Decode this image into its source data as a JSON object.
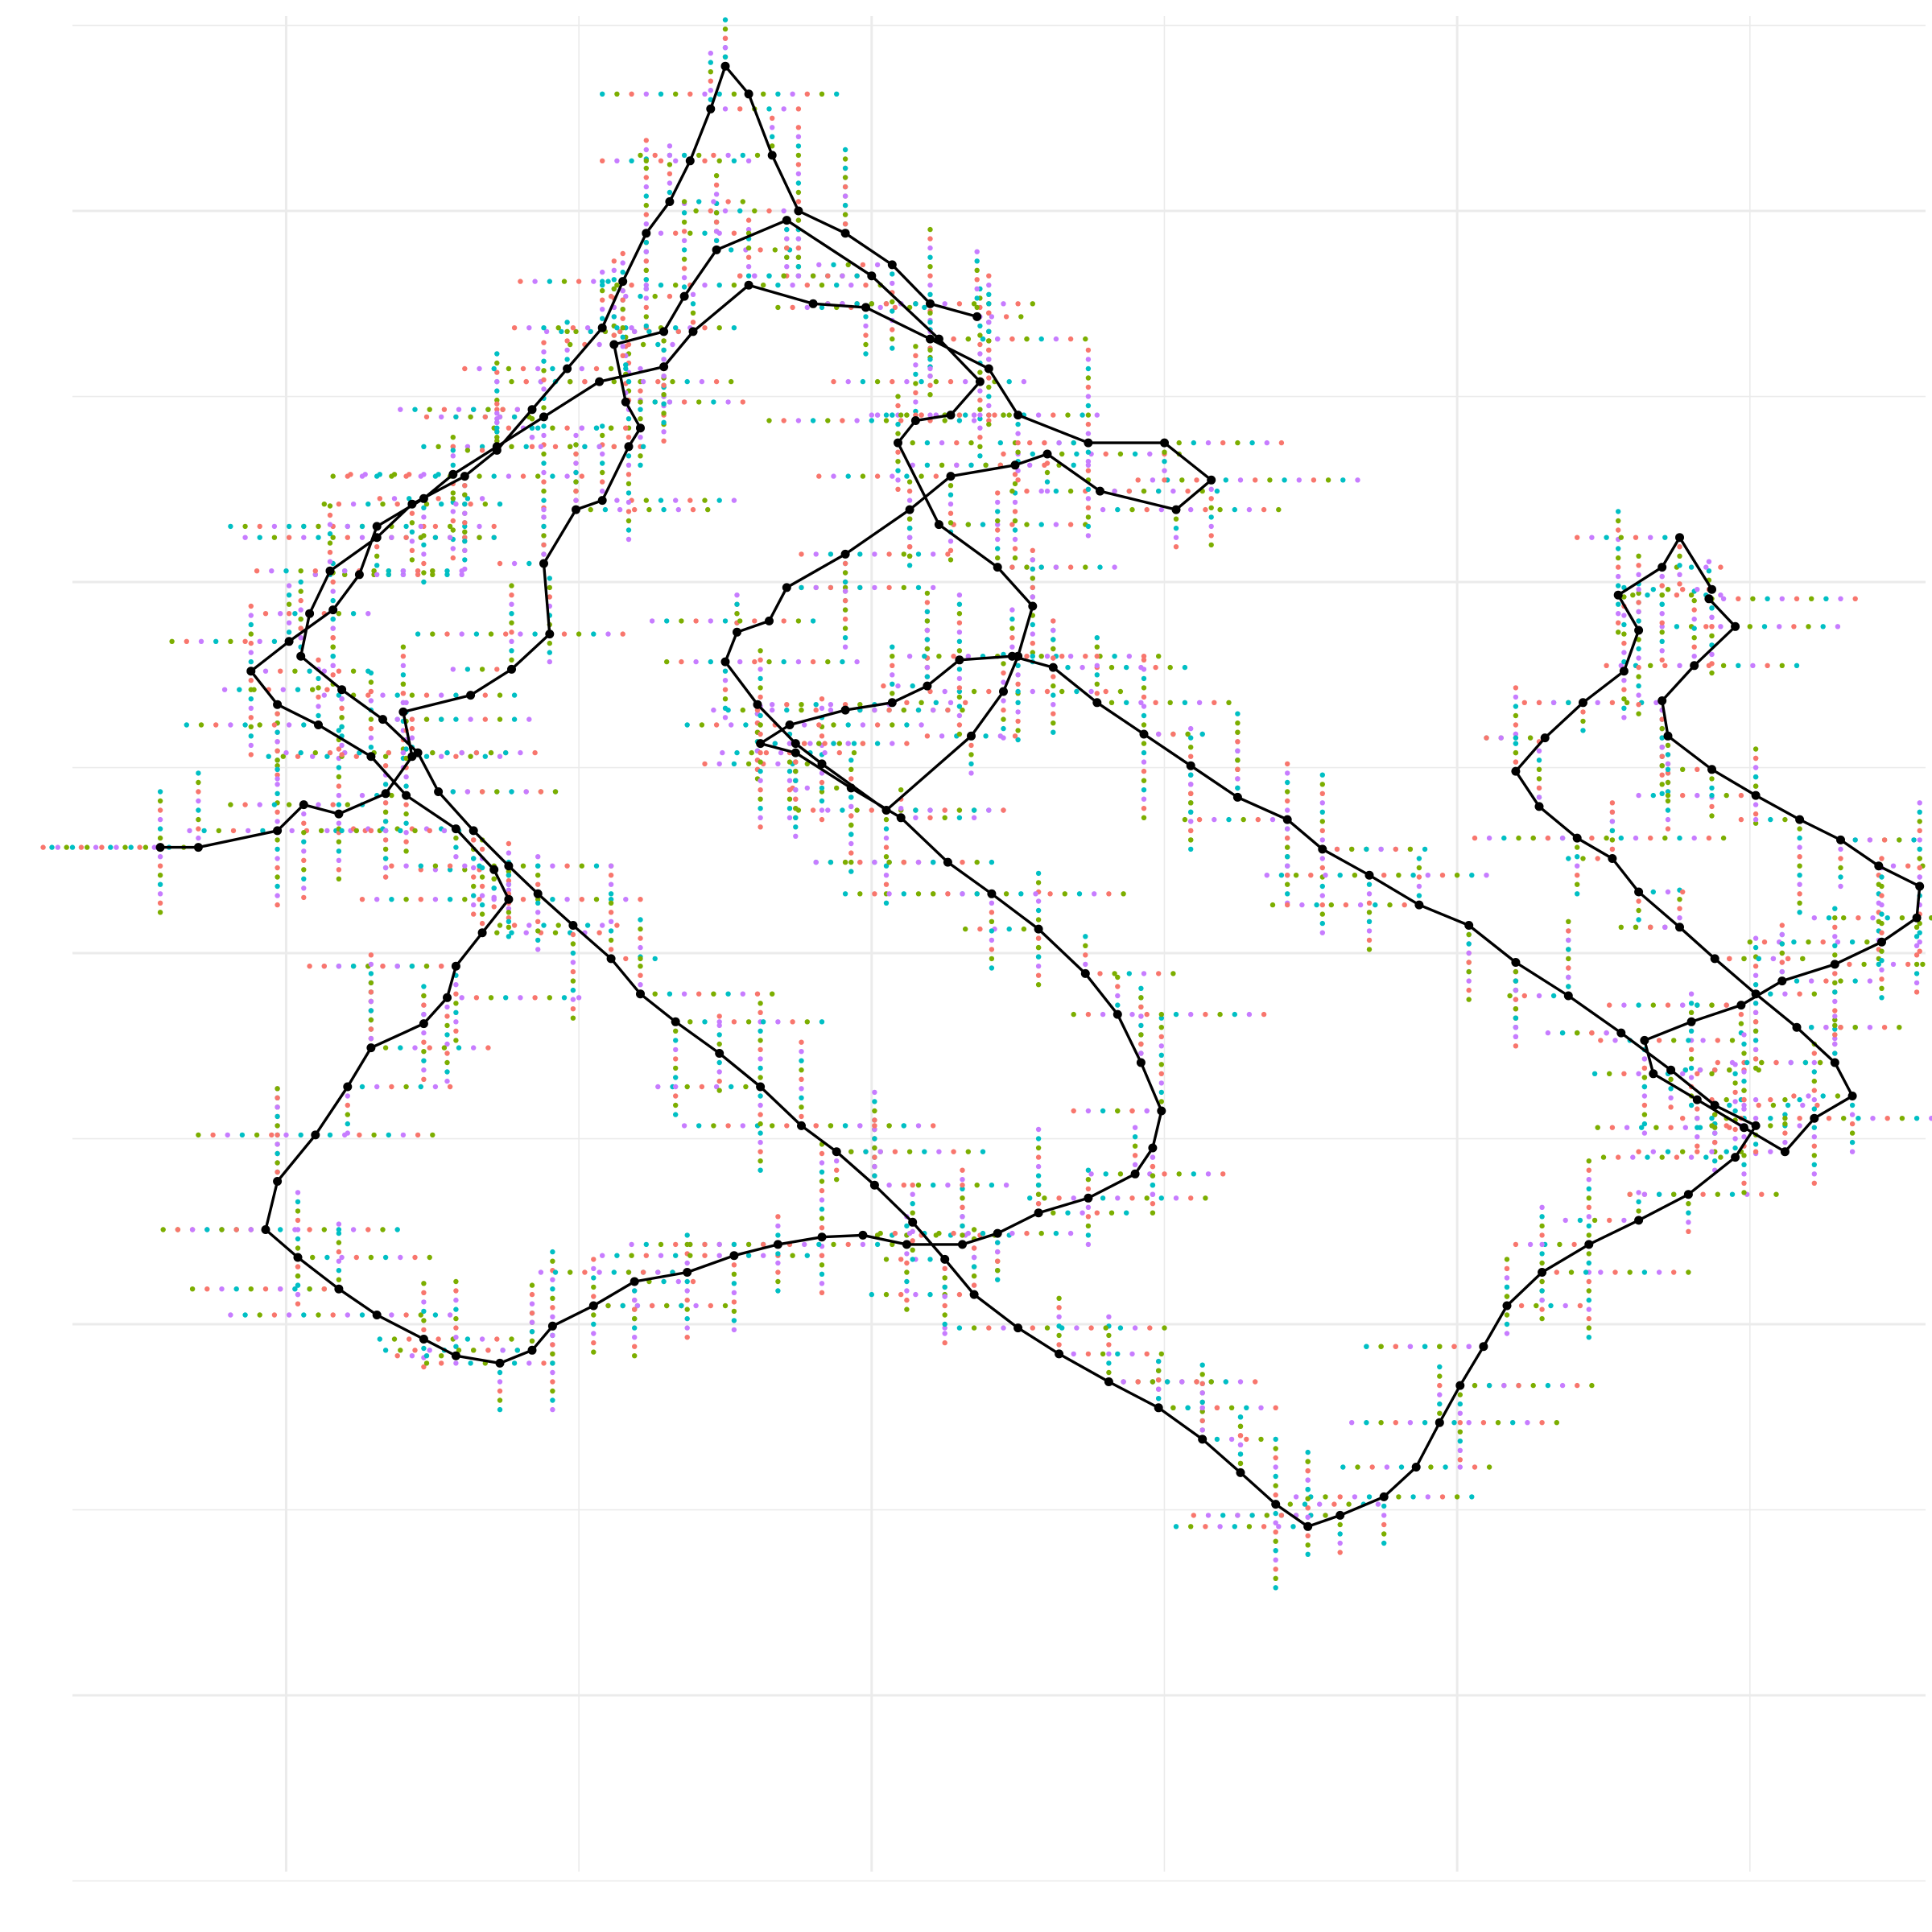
{
  "chart_data": {
    "type": "scatter",
    "title": "",
    "xlabel": "",
    "ylabel": "",
    "xlim": [
      -0.73,
      5.6
    ],
    "ylim": [
      -0.95,
      9.05
    ],
    "grid": true,
    "legend": "none",
    "major_breaks_x": [
      0,
      2,
      4
    ],
    "minor_breaks_x": [
      -1,
      1,
      3,
      5
    ],
    "major_breaks_y": [
      0,
      2,
      4,
      6,
      8
    ],
    "minor_breaks_y": [
      -1,
      1,
      3,
      5,
      7,
      9
    ],
    "step": 0.05,
    "palette": [
      "#F8766D",
      "#7CAE00",
      "#00BFC4",
      "#C77CFF"
    ],
    "grid_color": "#EBEBEB",
    "path_color": "#000000",
    "series": [
      {
        "kind": "path",
        "points": [
          [
            -0.43,
            4.57
          ],
          [
            -0.3,
            4.57
          ],
          [
            -0.03,
            4.66
          ],
          [
            0.06,
            4.8
          ],
          [
            0.18,
            4.75
          ],
          [
            0.34,
            4.86
          ],
          [
            0.43,
            5.06
          ],
          [
            0.4,
            5.3
          ],
          [
            0.63,
            5.39
          ],
          [
            0.77,
            5.53
          ],
          [
            0.9,
            5.72
          ],
          [
            0.88,
            6.1
          ],
          [
            0.99,
            6.39
          ],
          [
            1.08,
            6.44
          ],
          [
            1.17,
            6.73
          ],
          [
            1.21,
            6.83
          ],
          [
            1.16,
            6.97
          ],
          [
            1.12,
            7.28
          ],
          [
            1.29,
            7.35
          ],
          [
            1.36,
            7.54
          ],
          [
            1.47,
            7.79
          ],
          [
            1.71,
            7.95
          ],
          [
            2.0,
            7.65
          ],
          [
            2.23,
            7.31
          ],
          [
            2.37,
            7.08
          ],
          [
            2.27,
            6.9
          ],
          [
            2.15,
            6.87
          ],
          [
            2.09,
            6.75
          ],
          [
            2.23,
            6.31
          ],
          [
            2.43,
            6.08
          ],
          [
            2.55,
            5.87
          ],
          [
            2.5,
            5.6
          ],
          [
            2.45,
            5.41
          ],
          [
            2.34,
            5.17
          ],
          [
            2.05,
            4.77
          ],
          [
            1.83,
            5.02
          ],
          [
            1.74,
            5.13
          ],
          [
            1.61,
            5.34
          ],
          [
            1.5,
            5.57
          ],
          [
            1.54,
            5.73
          ],
          [
            1.65,
            5.79
          ],
          [
            1.71,
            5.97
          ],
          [
            1.91,
            6.15
          ],
          [
            2.13,
            6.39
          ],
          [
            2.27,
            6.57
          ],
          [
            2.49,
            6.63
          ],
          [
            2.6,
            6.69
          ],
          [
            2.78,
            6.49
          ],
          [
            3.04,
            6.39
          ],
          [
            3.16,
            6.55
          ],
          [
            3.0,
            6.75
          ],
          [
            2.74,
            6.75
          ],
          [
            2.5,
            6.9
          ],
          [
            2.4,
            7.15
          ],
          [
            2.2,
            7.31
          ],
          [
            1.98,
            7.48
          ],
          [
            1.8,
            7.5
          ],
          [
            1.58,
            7.6
          ],
          [
            1.39,
            7.35
          ],
          [
            1.29,
            7.16
          ],
          [
            1.07,
            7.08
          ],
          [
            0.88,
            6.89
          ],
          [
            0.72,
            6.73
          ],
          [
            0.57,
            6.58
          ],
          [
            0.47,
            6.45
          ],
          [
            0.31,
            6.3
          ],
          [
            0.25,
            6.04
          ],
          [
            0.16,
            5.85
          ],
          [
            0.01,
            5.68
          ],
          [
            -0.12,
            5.52
          ],
          [
            -0.03,
            5.34
          ],
          [
            0.11,
            5.23
          ],
          [
            0.29,
            5.06
          ],
          [
            0.41,
            4.85
          ],
          [
            0.58,
            4.67
          ],
          [
            0.71,
            4.45
          ],
          [
            0.76,
            4.29
          ],
          [
            0.67,
            4.11
          ],
          [
            0.58,
            3.93
          ],
          [
            0.55,
            3.76
          ],
          [
            0.47,
            3.62
          ],
          [
            0.29,
            3.49
          ],
          [
            0.21,
            3.28
          ],
          [
            0.1,
            3.02
          ],
          [
            -0.03,
            2.77
          ],
          [
            -0.07,
            2.51
          ],
          [
            0.04,
            2.36
          ],
          [
            0.18,
            2.19
          ],
          [
            0.31,
            2.05
          ],
          [
            0.47,
            1.92
          ],
          [
            0.58,
            1.83
          ],
          [
            0.73,
            1.79
          ],
          [
            0.84,
            1.86
          ],
          [
            0.91,
            1.99
          ],
          [
            1.05,
            2.1
          ],
          [
            1.19,
            2.23
          ],
          [
            1.37,
            2.28
          ],
          [
            1.53,
            2.37
          ],
          [
            1.68,
            2.43
          ],
          [
            1.83,
            2.47
          ],
          [
            1.97,
            2.48
          ],
          [
            2.12,
            2.43
          ],
          [
            2.31,
            2.43
          ],
          [
            2.43,
            2.49
          ],
          [
            2.57,
            2.6
          ],
          [
            2.74,
            2.68
          ],
          [
            2.9,
            2.81
          ],
          [
            2.96,
            2.95
          ],
          [
            2.99,
            3.15
          ],
          [
            2.92,
            3.41
          ],
          [
            2.84,
            3.67
          ],
          [
            2.73,
            3.89
          ],
          [
            2.57,
            4.13
          ],
          [
            2.41,
            4.32
          ],
          [
            2.26,
            4.49
          ],
          [
            2.1,
            4.73
          ],
          [
            1.93,
            4.89
          ],
          [
            1.74,
            5.08
          ],
          [
            1.62,
            5.13
          ],
          [
            1.72,
            5.23
          ],
          [
            1.91,
            5.31
          ],
          [
            2.07,
            5.35
          ],
          [
            2.19,
            5.44
          ],
          [
            2.3,
            5.58
          ],
          [
            2.48,
            5.6
          ],
          [
            2.62,
            5.54
          ],
          [
            2.77,
            5.35
          ],
          [
            2.93,
            5.18
          ],
          [
            3.09,
            5.01
          ],
          [
            3.25,
            4.84
          ],
          [
            3.42,
            4.72
          ],
          [
            3.54,
            4.56
          ],
          [
            3.7,
            4.42
          ],
          [
            3.87,
            4.26
          ],
          [
            4.04,
            4.15
          ],
          [
            4.2,
            3.95
          ],
          [
            4.38,
            3.77
          ],
          [
            4.56,
            3.57
          ],
          [
            4.73,
            3.37
          ],
          [
            4.88,
            3.18
          ],
          [
            5.02,
            3.07
          ],
          [
            4.95,
            2.9
          ],
          [
            4.79,
            2.7
          ],
          [
            4.62,
            2.56
          ],
          [
            4.45,
            2.43
          ],
          [
            4.29,
            2.28
          ],
          [
            4.17,
            2.1
          ],
          [
            4.09,
            1.88
          ],
          [
            4.01,
            1.67
          ],
          [
            3.94,
            1.47
          ],
          [
            3.86,
            1.23
          ],
          [
            3.75,
            1.07
          ],
          [
            3.6,
            0.97
          ],
          [
            3.49,
            0.91
          ],
          [
            3.38,
            1.03
          ],
          [
            3.26,
            1.2
          ],
          [
            3.13,
            1.38
          ],
          [
            2.98,
            1.55
          ],
          [
            2.81,
            1.69
          ],
          [
            2.64,
            1.84
          ],
          [
            2.5,
            1.98
          ],
          [
            2.35,
            2.16
          ],
          [
            2.25,
            2.35
          ],
          [
            2.14,
            2.55
          ],
          [
            2.01,
            2.75
          ],
          [
            1.88,
            2.93
          ],
          [
            1.76,
            3.07
          ],
          [
            1.62,
            3.28
          ],
          [
            1.48,
            3.46
          ],
          [
            1.33,
            3.63
          ],
          [
            1.21,
            3.78
          ],
          [
            1.11,
            3.97
          ],
          [
            0.98,
            4.15
          ],
          [
            0.86,
            4.32
          ],
          [
            0.76,
            4.47
          ],
          [
            0.64,
            4.66
          ],
          [
            0.52,
            4.87
          ],
          [
            0.45,
            5.08
          ],
          [
            0.33,
            5.26
          ],
          [
            0.19,
            5.42
          ],
          [
            0.05,
            5.6
          ],
          [
            0.08,
            5.83
          ],
          [
            0.15,
            6.06
          ],
          [
            0.31,
            6.24
          ],
          [
            0.43,
            6.42
          ],
          [
            0.61,
            6.57
          ],
          [
            0.72,
            6.71
          ],
          [
            0.84,
            6.93
          ],
          [
            0.96,
            7.15
          ],
          [
            1.08,
            7.37
          ],
          [
            1.15,
            7.62
          ],
          [
            1.23,
            7.88
          ],
          [
            1.31,
            8.05
          ],
          [
            1.38,
            8.27
          ],
          [
            1.45,
            8.55
          ],
          [
            1.5,
            8.78
          ],
          [
            1.58,
            8.63
          ],
          [
            1.66,
            8.3
          ],
          [
            1.75,
            8.0
          ],
          [
            1.91,
            7.88
          ],
          [
            2.07,
            7.71
          ],
          [
            2.2,
            7.5
          ],
          [
            2.36,
            7.43
          ]
        ]
      },
      {
        "kind": "path",
        "points": [
          [
            4.86,
            5.91
          ],
          [
            4.95,
            5.76
          ],
          [
            4.81,
            5.55
          ],
          [
            4.7,
            5.36
          ],
          [
            4.72,
            5.17
          ],
          [
            4.87,
            4.99
          ],
          [
            5.02,
            4.85
          ],
          [
            5.17,
            4.72
          ],
          [
            5.31,
            4.61
          ],
          [
            5.44,
            4.47
          ],
          [
            5.58,
            4.36
          ],
          [
            5.57,
            4.19
          ],
          [
            5.45,
            4.06
          ],
          [
            5.29,
            3.94
          ],
          [
            5.11,
            3.85
          ],
          [
            4.97,
            3.72
          ],
          [
            4.8,
            3.63
          ],
          [
            4.64,
            3.53
          ],
          [
            4.67,
            3.35
          ],
          [
            4.82,
            3.21
          ],
          [
            4.98,
            3.06
          ],
          [
            5.12,
            2.93
          ],
          [
            5.22,
            3.11
          ],
          [
            5.35,
            3.23
          ],
          [
            5.29,
            3.41
          ],
          [
            5.16,
            3.6
          ],
          [
            5.02,
            3.78
          ],
          [
            4.88,
            3.97
          ],
          [
            4.76,
            4.14
          ],
          [
            4.62,
            4.33
          ],
          [
            4.53,
            4.51
          ],
          [
            4.41,
            4.62
          ],
          [
            4.28,
            4.79
          ],
          [
            4.2,
            4.98
          ],
          [
            4.3,
            5.16
          ],
          [
            4.43,
            5.35
          ],
          [
            4.57,
            5.52
          ],
          [
            4.62,
            5.74
          ],
          [
            4.55,
            5.93
          ],
          [
            4.7,
            6.08
          ],
          [
            4.76,
            6.24
          ],
          [
            4.87,
            5.96
          ]
        ]
      }
    ]
  }
}
